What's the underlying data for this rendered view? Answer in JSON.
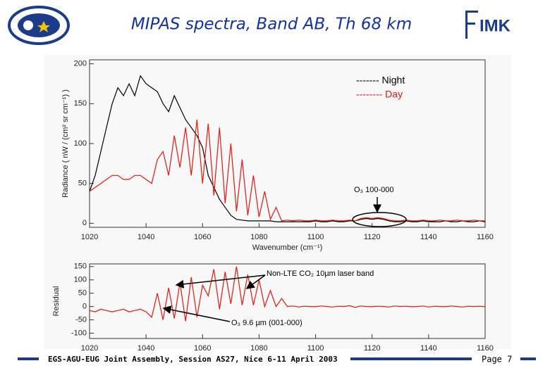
{
  "slide": {
    "title": "MIPAS spectra, Band AB, Th 68 km",
    "logo": "IMK",
    "footer": "EGS-AGU-EUG Joint Assembly, Session AS27, Nice 6-11 April 2003",
    "page": "Page 7"
  },
  "chart_data": [
    {
      "type": "line",
      "xlabel": "Wavenumber (cm⁻¹)",
      "ylabel": "Radiance ( nW / (cm² sr cm⁻¹) )",
      "x": [
        1020,
        1022,
        1024,
        1026,
        1028,
        1030,
        1032,
        1034,
        1036,
        1038,
        1040,
        1042,
        1044,
        1046,
        1048,
        1050,
        1052,
        1054,
        1056,
        1058,
        1060,
        1062,
        1064,
        1066,
        1068,
        1070,
        1072,
        1074,
        1076,
        1078,
        1080,
        1082,
        1084,
        1086,
        1088,
        1090,
        1092,
        1094,
        1096,
        1098,
        1100,
        1102,
        1104,
        1106,
        1108,
        1110,
        1112,
        1114,
        1116,
        1118,
        1120,
        1122,
        1124,
        1126,
        1128,
        1130,
        1132,
        1134,
        1136,
        1138,
        1140,
        1142,
        1144,
        1146,
        1148,
        1150,
        1152,
        1154,
        1156,
        1158,
        1160
      ],
      "series": [
        {
          "name": "------- Night",
          "color": "#000000",
          "values": [
            40,
            60,
            90,
            120,
            150,
            170,
            160,
            175,
            160,
            185,
            175,
            170,
            165,
            150,
            140,
            160,
            145,
            130,
            120,
            110,
            95,
            60,
            45,
            30,
            20,
            10,
            5,
            4,
            3,
            3,
            3,
            3,
            3,
            2,
            2,
            2,
            2,
            2,
            2,
            2,
            3,
            2,
            2,
            3,
            2,
            2,
            3,
            3,
            5,
            6,
            5,
            6,
            5,
            3,
            2,
            2,
            3,
            2,
            2,
            3,
            2,
            2,
            2,
            3,
            2,
            2,
            3,
            2,
            2,
            3,
            2
          ]
        },
        {
          "name": "-------- Day",
          "color": "#e8160c",
          "values": [
            40,
            45,
            50,
            55,
            60,
            60,
            55,
            55,
            60,
            60,
            55,
            50,
            80,
            90,
            60,
            110,
            70,
            120,
            60,
            130,
            50,
            125,
            35,
            120,
            25,
            100,
            15,
            80,
            10,
            60,
            8,
            40,
            5,
            20,
            3,
            4,
            3,
            4,
            3,
            3,
            4,
            3,
            3,
            4,
            3,
            3,
            4,
            3,
            6,
            7,
            6,
            7,
            6,
            4,
            3,
            3,
            4,
            3,
            3,
            4,
            3,
            3,
            4,
            3,
            3,
            4,
            3,
            3,
            4,
            3,
            3
          ]
        }
      ],
      "annotations": [
        "O₃ 100-000"
      ],
      "xlim": [
        1020,
        1160
      ],
      "ylim": [
        -5,
        205
      ],
      "xticks": [
        1020,
        1040,
        1060,
        1080,
        1100,
        1120,
        1140,
        1160
      ],
      "yticks": [
        0,
        50,
        100,
        150,
        200
      ]
    },
    {
      "type": "line",
      "ylabel": "Residual",
      "color": "#e8160c",
      "x": [
        1020,
        1022,
        1024,
        1026,
        1028,
        1030,
        1032,
        1034,
        1036,
        1038,
        1040,
        1042,
        1044,
        1046,
        1048,
        1050,
        1052,
        1054,
        1056,
        1058,
        1060,
        1062,
        1064,
        1066,
        1068,
        1070,
        1072,
        1074,
        1076,
        1078,
        1080,
        1082,
        1084,
        1086,
        1088,
        1090,
        1092,
        1094,
        1096,
        1098,
        1100,
        1102,
        1104,
        1106,
        1108,
        1110,
        1112,
        1114,
        1116,
        1118,
        1120,
        1122,
        1124,
        1126,
        1128,
        1130,
        1132,
        1134,
        1136,
        1138,
        1140,
        1142,
        1144,
        1146,
        1148,
        1150,
        1152,
        1154,
        1156,
        1158,
        1160
      ],
      "values": [
        -15,
        -20,
        -10,
        -15,
        -20,
        -15,
        -10,
        -20,
        -15,
        -10,
        -20,
        -40,
        50,
        -50,
        70,
        -45,
        90,
        -55,
        110,
        -40,
        80,
        40,
        140,
        -10,
        130,
        10,
        150,
        5,
        120,
        5,
        100,
        0,
        60,
        0,
        30,
        0,
        2,
        -2,
        1,
        0,
        -1,
        2,
        0,
        -2,
        1,
        0,
        3,
        -3,
        2,
        0,
        -1,
        1,
        0,
        -2,
        2,
        0,
        1,
        -1,
        0,
        2,
        -2,
        1,
        0,
        -1,
        2,
        0,
        -2,
        1,
        0,
        1,
        -1
      ],
      "annotations": [
        "Non-LTE CO₂ 10µm laser band",
        "O₃ 9.6 µm (001-000)"
      ],
      "xlim": [
        1020,
        1160
      ],
      "ylim": [
        -120,
        160
      ],
      "xticks": [
        1020,
        1040,
        1060,
        1080,
        1100,
        1120,
        1140,
        1160
      ],
      "yticks": [
        -100,
        -50,
        0,
        50,
        100,
        150
      ]
    }
  ]
}
